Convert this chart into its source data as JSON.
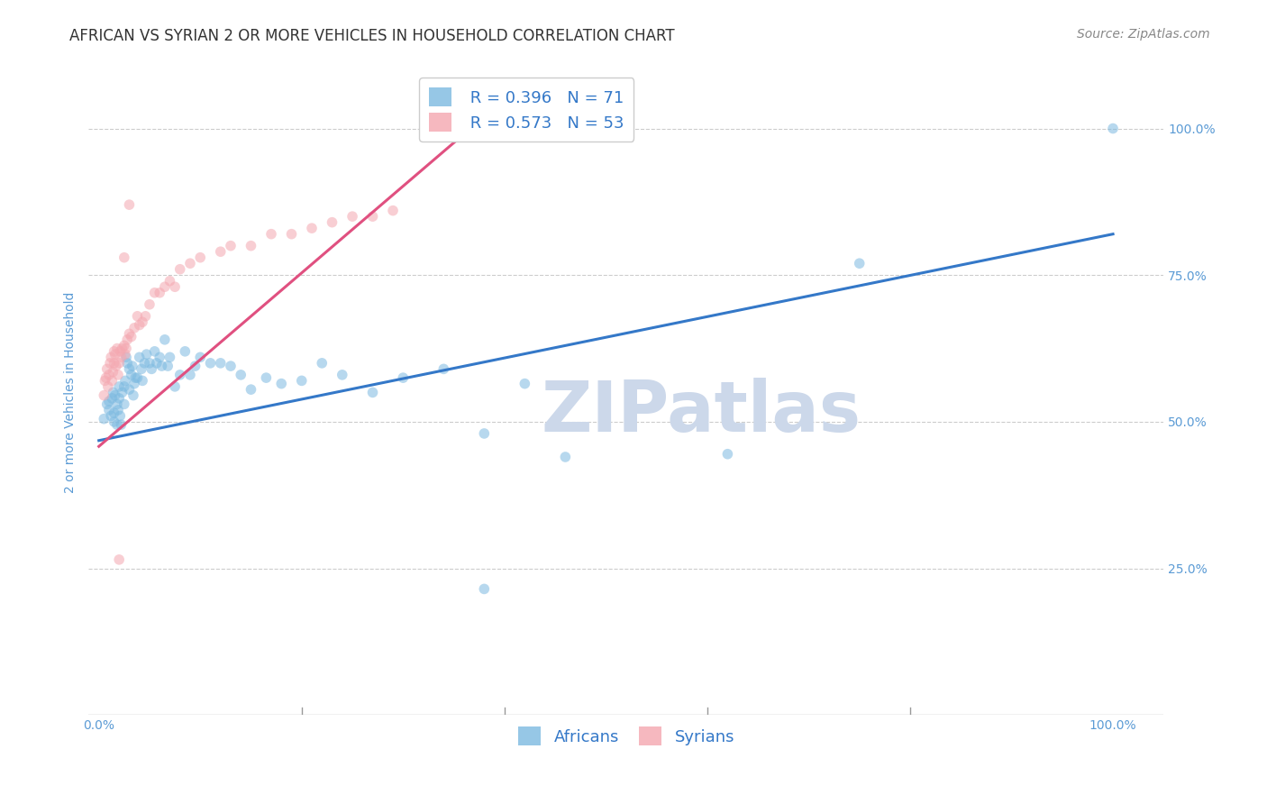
{
  "title": "AFRICAN VS SYRIAN 2 OR MORE VEHICLES IN HOUSEHOLD CORRELATION CHART",
  "source": "Source: ZipAtlas.com",
  "ylabel": "2 or more Vehicles in Household",
  "ytick_labels": [
    "100.0%",
    "75.0%",
    "50.0%",
    "25.0%"
  ],
  "ytick_positions": [
    1.0,
    0.75,
    0.5,
    0.25
  ],
  "xtick_labels": [
    "0.0%",
    "100.0%"
  ],
  "xtick_positions": [
    0.0,
    1.0
  ],
  "xlim": [
    -0.01,
    1.05
  ],
  "ylim": [
    0.0,
    1.1
  ],
  "legend_r_african": "R = 0.396",
  "legend_n_african": "N = 71",
  "legend_r_syrian": "R = 0.573",
  "legend_n_syrian": "N = 53",
  "african_color": "#7cb9e0",
  "african_line_color": "#3478c8",
  "syrian_color": "#f4a7b0",
  "syrian_line_color": "#e05080",
  "watermark_text": "ZIPatlas",
  "african_scatter_x": [
    0.005,
    0.008,
    0.01,
    0.01,
    0.012,
    0.013,
    0.014,
    0.015,
    0.015,
    0.016,
    0.018,
    0.018,
    0.019,
    0.02,
    0.02,
    0.021,
    0.022,
    0.023,
    0.025,
    0.025,
    0.026,
    0.027,
    0.028,
    0.03,
    0.03,
    0.032,
    0.033,
    0.034,
    0.035,
    0.036,
    0.038,
    0.04,
    0.042,
    0.043,
    0.045,
    0.047,
    0.05,
    0.052,
    0.055,
    0.057,
    0.06,
    0.062,
    0.065,
    0.068,
    0.07,
    0.075,
    0.08,
    0.085,
    0.09,
    0.095,
    0.1,
    0.11,
    0.12,
    0.13,
    0.14,
    0.15,
    0.165,
    0.18,
    0.2,
    0.22,
    0.24,
    0.27,
    0.3,
    0.34,
    0.38,
    0.42,
    0.46,
    0.62,
    0.75,
    0.38,
    1.0
  ],
  "african_scatter_y": [
    0.505,
    0.53,
    0.52,
    0.535,
    0.51,
    0.54,
    0.55,
    0.515,
    0.5,
    0.545,
    0.495,
    0.53,
    0.52,
    0.56,
    0.54,
    0.51,
    0.495,
    0.55,
    0.56,
    0.53,
    0.57,
    0.61,
    0.6,
    0.555,
    0.59,
    0.58,
    0.595,
    0.545,
    0.565,
    0.575,
    0.575,
    0.61,
    0.59,
    0.57,
    0.6,
    0.615,
    0.6,
    0.59,
    0.62,
    0.6,
    0.61,
    0.595,
    0.64,
    0.595,
    0.61,
    0.56,
    0.58,
    0.62,
    0.58,
    0.595,
    0.61,
    0.6,
    0.6,
    0.595,
    0.58,
    0.555,
    0.575,
    0.565,
    0.57,
    0.6,
    0.58,
    0.55,
    0.575,
    0.59,
    0.48,
    0.565,
    0.44,
    0.445,
    0.77,
    0.215,
    1.0
  ],
  "syrian_scatter_x": [
    0.005,
    0.006,
    0.007,
    0.008,
    0.009,
    0.01,
    0.011,
    0.012,
    0.013,
    0.014,
    0.015,
    0.015,
    0.016,
    0.017,
    0.018,
    0.019,
    0.02,
    0.021,
    0.022,
    0.023,
    0.025,
    0.026,
    0.027,
    0.028,
    0.03,
    0.032,
    0.035,
    0.038,
    0.04,
    0.043,
    0.046,
    0.05,
    0.055,
    0.06,
    0.065,
    0.07,
    0.075,
    0.08,
    0.09,
    0.1,
    0.12,
    0.13,
    0.15,
    0.17,
    0.19,
    0.21,
    0.23,
    0.25,
    0.27,
    0.29,
    0.02,
    0.025,
    0.03
  ],
  "syrian_scatter_y": [
    0.545,
    0.57,
    0.575,
    0.59,
    0.56,
    0.58,
    0.6,
    0.61,
    0.57,
    0.585,
    0.6,
    0.62,
    0.615,
    0.595,
    0.625,
    0.58,
    0.6,
    0.62,
    0.61,
    0.625,
    0.63,
    0.615,
    0.625,
    0.64,
    0.65,
    0.645,
    0.66,
    0.68,
    0.665,
    0.67,
    0.68,
    0.7,
    0.72,
    0.72,
    0.73,
    0.74,
    0.73,
    0.76,
    0.77,
    0.78,
    0.79,
    0.8,
    0.8,
    0.82,
    0.82,
    0.83,
    0.84,
    0.85,
    0.85,
    0.86,
    0.265,
    0.78,
    0.87
  ],
  "african_line_x": [
    0.0,
    1.0
  ],
  "african_line_y": [
    0.468,
    0.82
  ],
  "syrian_line_x": [
    0.0,
    0.38
  ],
  "syrian_line_y": [
    0.458,
    1.02
  ],
  "title_fontsize": 12,
  "axis_label_fontsize": 10,
  "tick_fontsize": 10,
  "legend_fontsize": 13,
  "source_fontsize": 10,
  "background_color": "#ffffff",
  "grid_color": "#cccccc",
  "title_color": "#333333",
  "axis_color": "#5b9bd5",
  "source_color": "#888888",
  "legend_text_color": "#3478c8",
  "watermark_color": "#ccd8ea",
  "scatter_size": 70,
  "scatter_alpha": 0.55
}
